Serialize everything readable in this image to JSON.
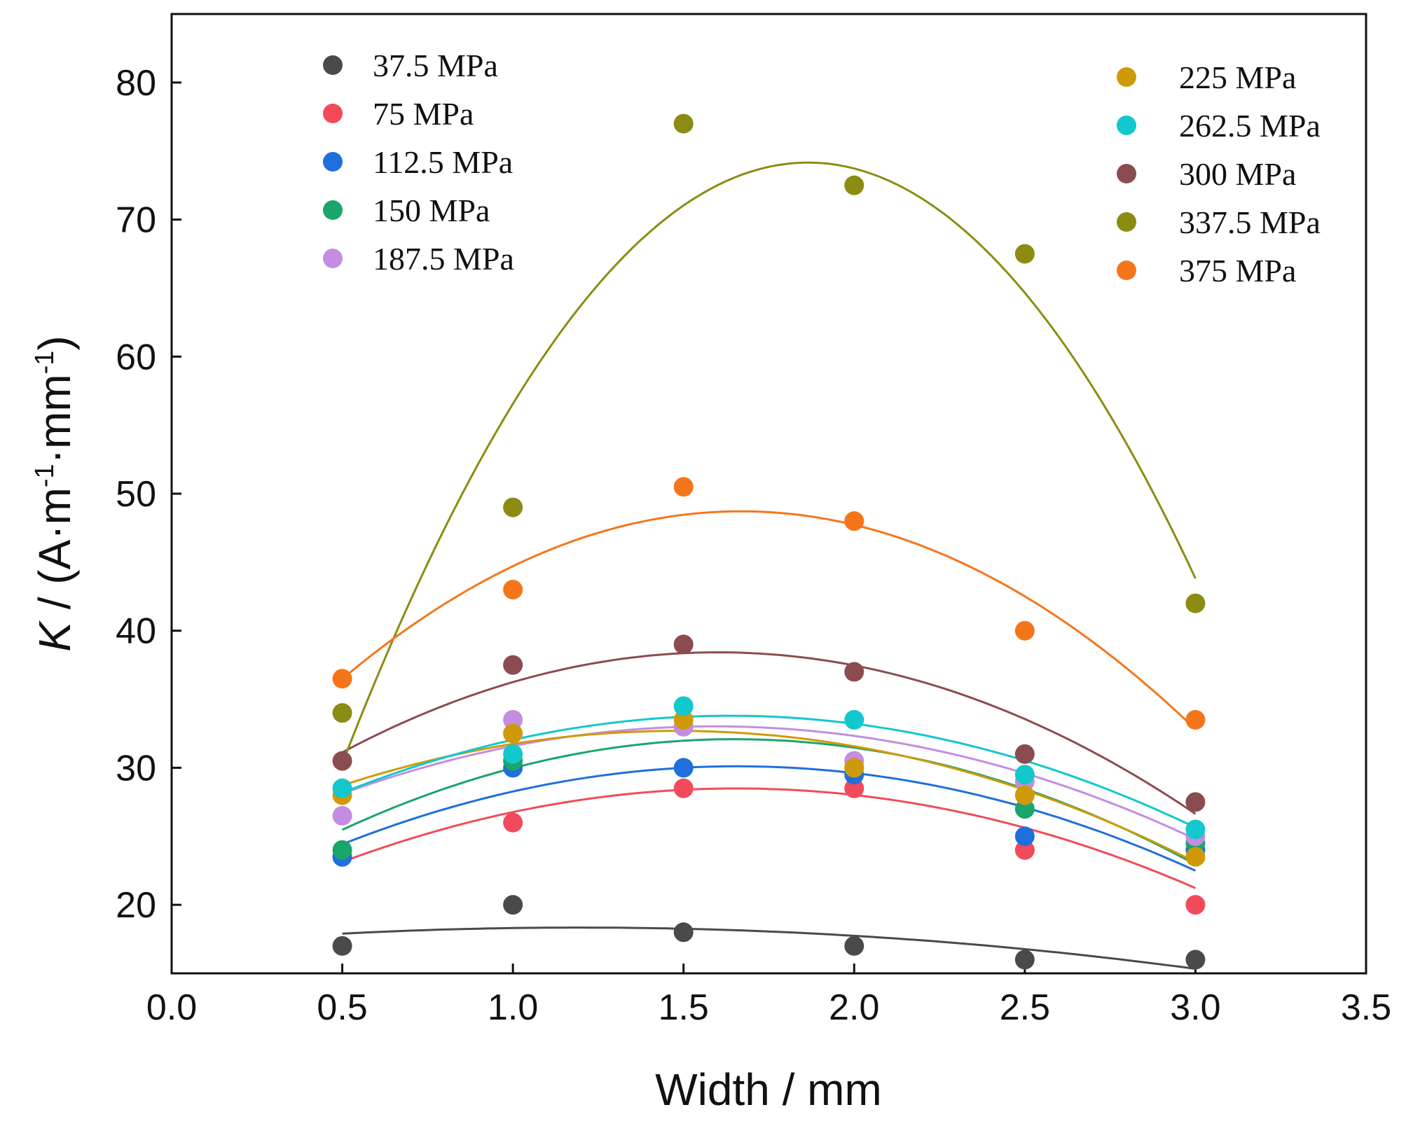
{
  "chart_data": {
    "type": "scatter",
    "xlabel": "Width / mm",
    "ylabel": {
      "symbol": "K",
      "prefix": " / (A·m",
      "sup1": "-1",
      "middle": "·mm",
      "sup2": "-1",
      "suffix": ")"
    },
    "xlim": [
      0.0,
      3.5
    ],
    "ylim": [
      15,
      85
    ],
    "xticks": [
      "0.0",
      "0.5",
      "1.0",
      "1.5",
      "2.0",
      "2.5",
      "3.0",
      "3.5"
    ],
    "xtick_values": [
      0.0,
      0.5,
      1.0,
      1.5,
      2.0,
      2.5,
      3.0,
      3.5
    ],
    "yticks": [
      "20",
      "30",
      "40",
      "50",
      "60",
      "70",
      "80"
    ],
    "ytick_values": [
      20,
      30,
      40,
      50,
      60,
      70,
      80
    ],
    "grid": false,
    "legend_placement": "top-left and top-right",
    "x": [
      0.5,
      1.0,
      1.5,
      2.0,
      2.5,
      3.0
    ],
    "series": [
      {
        "name": "37.5 MPa",
        "color": "#4a4a4a",
        "values": [
          17,
          20,
          18,
          17,
          16,
          16
        ],
        "fit": [
          17.93,
          18.26,
          18.22,
          17.78,
          16.8,
          15.3
        ],
        "legend_column": "left"
      },
      {
        "name": "75 MPa",
        "color": "#f24a5a",
        "values": [
          23.5,
          26,
          28.5,
          28.5,
          24,
          20
        ],
        "fit": [
          23.25,
          26.6,
          28.3,
          28.1,
          25.8,
          21.1
        ],
        "legend_column": "left"
      },
      {
        "name": "112.5 MPa",
        "color": "#1f6fdc",
        "values": [
          23.5,
          30,
          30,
          29.5,
          25,
          24
        ],
        "fit": [
          24.4,
          28.3,
          30.0,
          29.6,
          27.1,
          22.5
        ],
        "legend_column": "left"
      },
      {
        "name": "150 MPa",
        "color": "#1aa56a",
        "values": [
          24,
          30.5,
          33,
          30,
          27,
          24.5
        ],
        "fit": [
          25.4,
          30.1,
          32.0,
          31.4,
          28.4,
          23.0
        ],
        "legend_column": "left"
      },
      {
        "name": "187.5 MPa",
        "color": "#c38ee0",
        "values": [
          26.5,
          33.5,
          33,
          30.5,
          29,
          25
        ],
        "fit": [
          28.1,
          31.6,
          33.0,
          32.3,
          29.6,
          24.8
        ],
        "legend_column": "left"
      },
      {
        "name": "225 MPa",
        "color": "#cf9a0a",
        "values": [
          28,
          32.5,
          33.5,
          30,
          28,
          23.5
        ],
        "fit": [
          28.6,
          31.9,
          32.8,
          31.4,
          28.3,
          23.2
        ],
        "legend_column": "right"
      },
      {
        "name": "262.5 MPa",
        "color": "#12c8cc",
        "values": [
          28.5,
          31,
          34.5,
          33.5,
          29.5,
          25.5
        ],
        "fit": [
          28.2,
          32.0,
          33.7,
          33.2,
          30.6,
          25.6
        ],
        "legend_column": "right"
      },
      {
        "name": "300 MPa",
        "color": "#8b4c50",
        "values": [
          30.5,
          37.5,
          39,
          37,
          31,
          27.5
        ],
        "fit": [
          31.3,
          36.0,
          38.2,
          37.7,
          33.7,
          26.5
        ],
        "legend_column": "right"
      },
      {
        "name": "337.5 MPa",
        "color": "#8c8c12",
        "values": [
          34,
          49,
          77,
          72.5,
          67.5,
          42
        ],
        "fit": [
          30.7,
          56.0,
          70.7,
          74.2,
          65.0,
          43.5
        ],
        "legend_column": "right"
      },
      {
        "name": "375 MPa",
        "color": "#f5761a",
        "values": [
          36.5,
          43,
          50.5,
          48,
          40,
          33.5
        ],
        "fit": [
          36.7,
          44.4,
          48.3,
          47.9,
          42.8,
          32.6
        ],
        "legend_column": "right"
      }
    ]
  }
}
